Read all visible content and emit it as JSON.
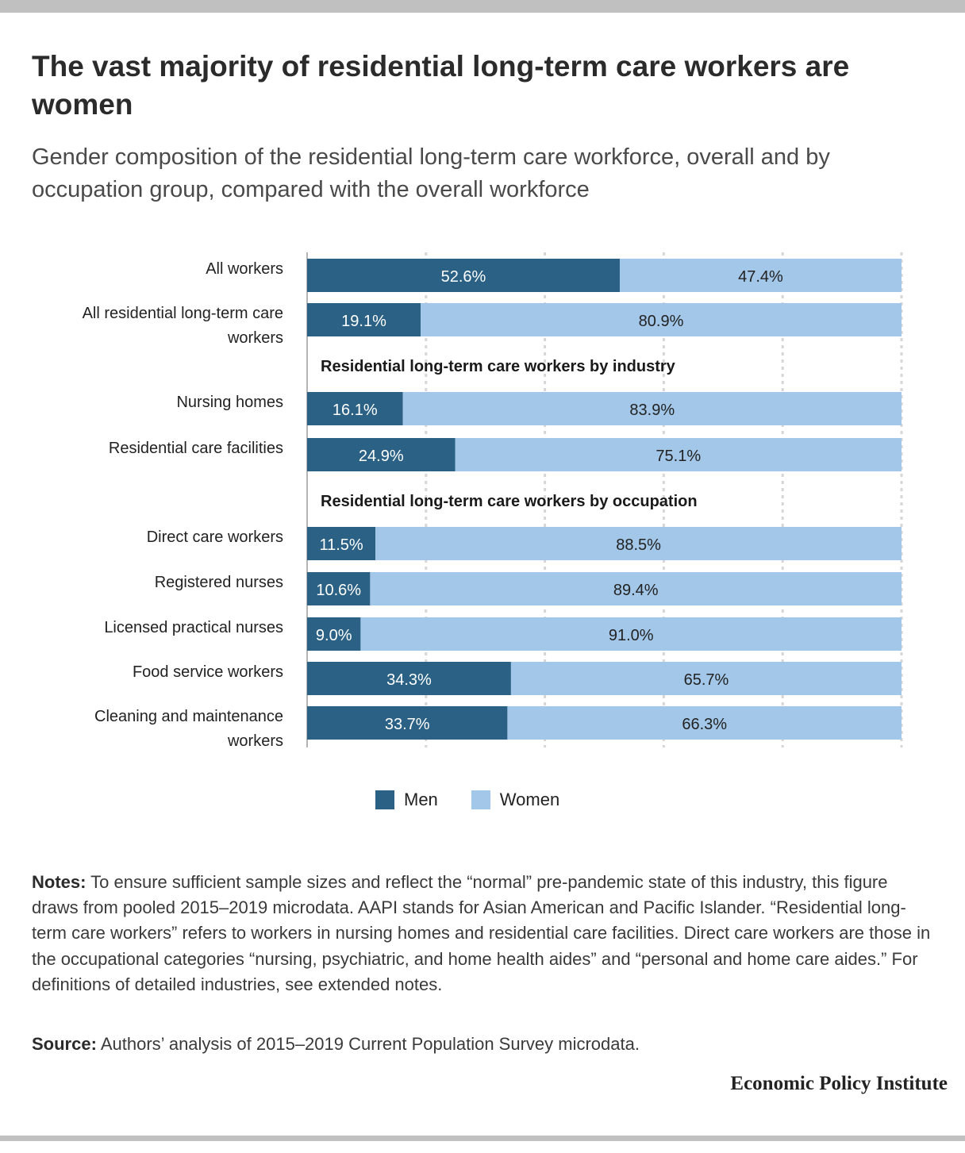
{
  "title": "The vast majority of residential long-term care workers are women",
  "subtitle": "Gender composition of the residential long-term care workforce, overall and by occupation group, compared with the overall workforce",
  "colors": {
    "men": "#2a6184",
    "women": "#a2c7e8",
    "grid": "#d6d6d6",
    "axis": "#b5b5b5"
  },
  "chart_data": {
    "type": "bar",
    "orientation": "horizontal",
    "stacked": true,
    "xlim": [
      0,
      100
    ],
    "grid": true,
    "legend_position": "bottom-center",
    "group_labels": [
      "Residential long-term care workers by industry",
      "Residential long-term care workers by occupation"
    ],
    "categories": [
      "All workers",
      "All residential long-term care workers",
      "Nursing homes",
      "Residential care facilities",
      "Direct care workers",
      "Registered nurses",
      "Licensed practical nurses",
      "Food service workers",
      "Cleaning and maintenance workers"
    ],
    "series": [
      {
        "name": "Men",
        "values": [
          52.6,
          19.1,
          16.1,
          24.9,
          11.5,
          10.6,
          9.0,
          34.3,
          33.7
        ]
      },
      {
        "name": "Women",
        "values": [
          47.4,
          80.9,
          83.9,
          75.1,
          88.5,
          89.4,
          91.0,
          65.7,
          66.3
        ]
      }
    ],
    "data_labels": {
      "Men": [
        "52.6%",
        "19.1%",
        "16.1%",
        "24.9%",
        "11.5%",
        "10.6%",
        "9.0%",
        "34.3%",
        "33.7%"
      ],
      "Women": [
        "47.4%",
        "80.9%",
        "83.9%",
        "75.1%",
        "88.5%",
        "89.4%",
        "91.0%",
        "65.7%",
        "66.3%"
      ]
    }
  },
  "notes_label": "Notes:",
  "notes_text": "To ensure sufficient sample sizes and reflect the “normal” pre-pandemic state of this industry, this figure draws from pooled 2015–2019 microdata. AAPI stands for Asian American and Pacific Islander. “Residential long-term care workers” refers to workers in nursing homes and residential care facilities. Direct care workers are those in the occupational categories “nursing, psychiatric, and home health aides” and “personal and home care aides.” For definitions of detailed industries, see extended notes.",
  "source_label": "Source:",
  "source_text": "Authors’ analysis of 2015–2019 Current Population Survey microdata.",
  "brand": "Economic Policy Institute"
}
